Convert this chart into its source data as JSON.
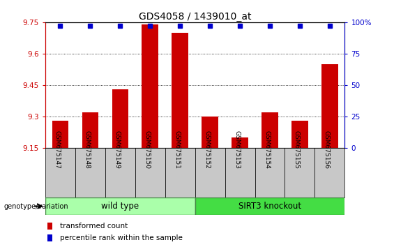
{
  "title": "GDS4058 / 1439010_at",
  "samples": [
    "GSM675147",
    "GSM675148",
    "GSM675149",
    "GSM675150",
    "GSM675151",
    "GSM675152",
    "GSM675153",
    "GSM675154",
    "GSM675155",
    "GSM675156"
  ],
  "bar_values": [
    9.28,
    9.32,
    9.43,
    9.74,
    9.7,
    9.3,
    9.2,
    9.32,
    9.28,
    9.55
  ],
  "percentile_values": [
    97,
    97,
    97,
    97,
    97,
    97,
    97,
    97,
    97,
    97
  ],
  "ylim_left": [
    9.15,
    9.75
  ],
  "ylim_right": [
    0,
    100
  ],
  "yticks_left": [
    9.15,
    9.3,
    9.45,
    9.6,
    9.75
  ],
  "yticks_right": [
    0,
    25,
    50,
    75,
    100
  ],
  "bar_color": "#CC0000",
  "dot_color": "#0000CC",
  "grid_color": "#000000",
  "wild_type_samples": 5,
  "wild_type_label": "wild type",
  "knockout_label": "SIRT3 knockout",
  "wild_type_color": "#AAFFAA",
  "knockout_color": "#44DD44",
  "genotype_label": "genotype/variation",
  "legend_bar_label": "transformed count",
  "legend_dot_label": "percentile rank within the sample",
  "axis_color_left": "#CC0000",
  "axis_color_right": "#0000CC",
  "background_xlabel": "#C8C8C8",
  "title_fontsize": 10,
  "tick_fontsize": 7.5,
  "sample_fontsize": 6.5,
  "legend_fontsize": 7.5
}
